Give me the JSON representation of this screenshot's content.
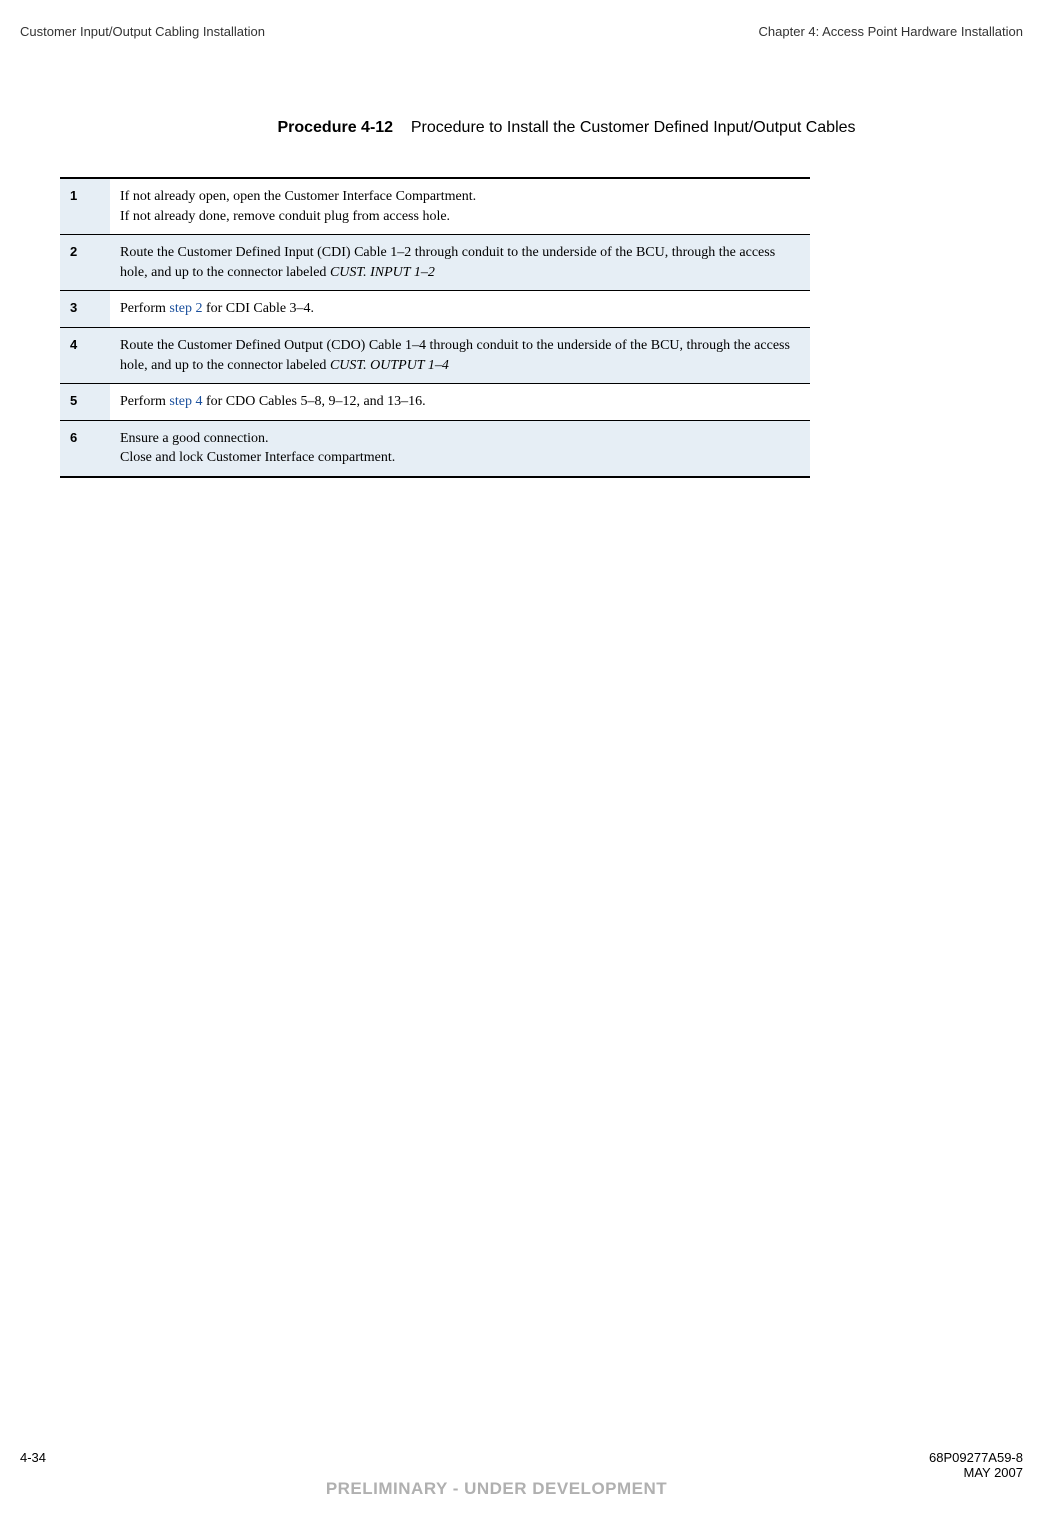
{
  "header": {
    "left": "Customer Input/Output Cabling Installation",
    "right": "Chapter 4: Access Point Hardware Installation"
  },
  "procedure": {
    "label": "Procedure 4-12",
    "title": "Procedure to Install the Customer Defined Input/Output Cables"
  },
  "steps": [
    {
      "num": "1",
      "shaded": false,
      "lines": [
        {
          "text": "If not already open, open the Customer Interface Compartment."
        },
        {
          "text": "If not already done, remove conduit plug from access hole."
        }
      ]
    },
    {
      "num": "2",
      "shaded": true,
      "lines": [
        {
          "text": "Route the Customer Defined Input (CDI) Cable 1–2 through conduit to the underside of the BCU, through the access hole, and up to the connector labeled ",
          "trailing_italic": "CUST. INPUT 1–2"
        }
      ]
    },
    {
      "num": "3",
      "shaded": false,
      "lines": [
        {
          "prefix": "Perform ",
          "link": "step 2",
          "suffix": " for CDI Cable 3–4."
        }
      ]
    },
    {
      "num": "4",
      "shaded": true,
      "lines": [
        {
          "text": "Route the Customer Defined Output (CDO) Cable 1–4 through conduit to the underside of the BCU, through the access hole, and up to the connector labeled ",
          "trailing_italic": "CUST. OUTPUT 1–4"
        }
      ]
    },
    {
      "num": "5",
      "shaded": false,
      "lines": [
        {
          "prefix": "Perform ",
          "link": "step 4",
          "suffix": " for CDO Cables 5–8, 9–12, and 13–16."
        }
      ]
    },
    {
      "num": "6",
      "shaded": true,
      "lines": [
        {
          "text": "Ensure  a  good  connection."
        },
        {
          "text": "Close and lock Customer Interface compartment."
        }
      ]
    }
  ],
  "footer": {
    "page": "4-34",
    "docnum": "68P09277A59-8",
    "preliminary": "PRELIMINARY - UNDER DEVELOPMENT",
    "date": "MAY 2007"
  },
  "colors": {
    "shaded_bg": "#e6eef5",
    "link": "#1a4f9c",
    "prelim_gray": "#b0b0b0"
  }
}
